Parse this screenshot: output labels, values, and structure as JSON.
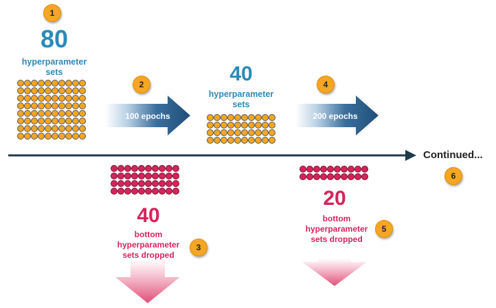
{
  "badges": [
    "1",
    "2",
    "3",
    "4",
    "5",
    "6"
  ],
  "stage1": {
    "count": "80",
    "label_line1": "hyperparameter",
    "label_line2": "sets",
    "dots": 80
  },
  "stage2": {
    "count": "40",
    "label_line1": "hyperparameter",
    "label_line2": "sets",
    "dots": 40
  },
  "arrow1": {
    "label": "100 epochs"
  },
  "arrow2": {
    "label": "200 epochs"
  },
  "dropped1": {
    "count": "40",
    "line1": "bottom",
    "line2": "hyperparameter",
    "line3": "sets dropped",
    "dots": 40
  },
  "dropped2": {
    "count": "20",
    "line1": "bottom",
    "line2": "hyperparameter",
    "line3": "sets dropped",
    "dots": 20
  },
  "timeline": {
    "continued_label": "Continued..."
  },
  "colors": {
    "badge": "#f5a623",
    "blue_text": "#2a8bb8",
    "pink_text": "#d6245a",
    "arrow_dark": "#1f4e79",
    "timeline": "#1f3a4d"
  }
}
